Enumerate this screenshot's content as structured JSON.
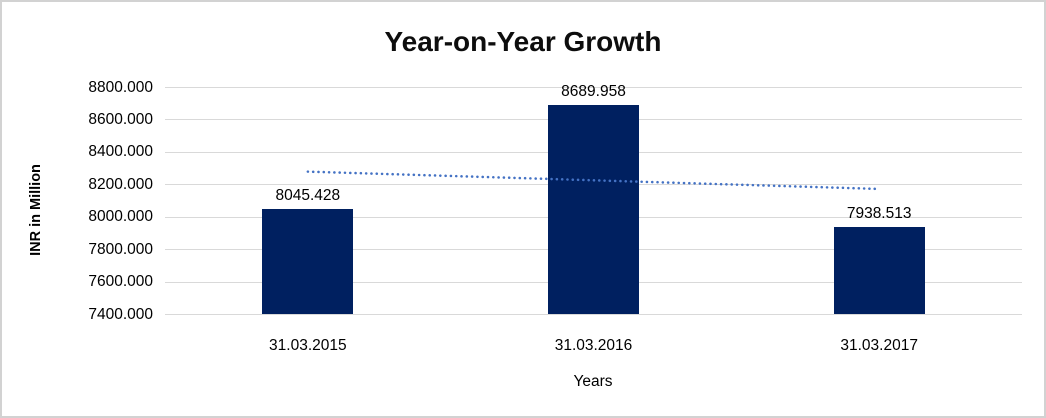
{
  "chart_data": {
    "type": "bar",
    "title": "Year-on-Year Growth",
    "categories": [
      "31.03.2015",
      "31.03.2016",
      "31.03.2017"
    ],
    "values": [
      8045.428,
      8689.958,
      7938.513
    ],
    "data_labels": [
      "8045.428",
      "8689.958",
      "7938.513"
    ],
    "xlabel": "Years",
    "ylabel": "INR in Million",
    "ylim": [
      7400,
      8800
    ],
    "ytick_step": 200,
    "ytick_labels": [
      "8800.000",
      "8600.000",
      "8400.000",
      "8200.000",
      "8000.000",
      "7800.000",
      "7600.000",
      "7400.000"
    ],
    "grid": true,
    "legend": false,
    "bar_color": "#002060",
    "gridline_color": "#d9d9d9",
    "trendline": {
      "type": "linear",
      "style": "dotted",
      "color": "#4472c4",
      "start_value": 8278.09,
      "end_value": 8171.18
    }
  }
}
